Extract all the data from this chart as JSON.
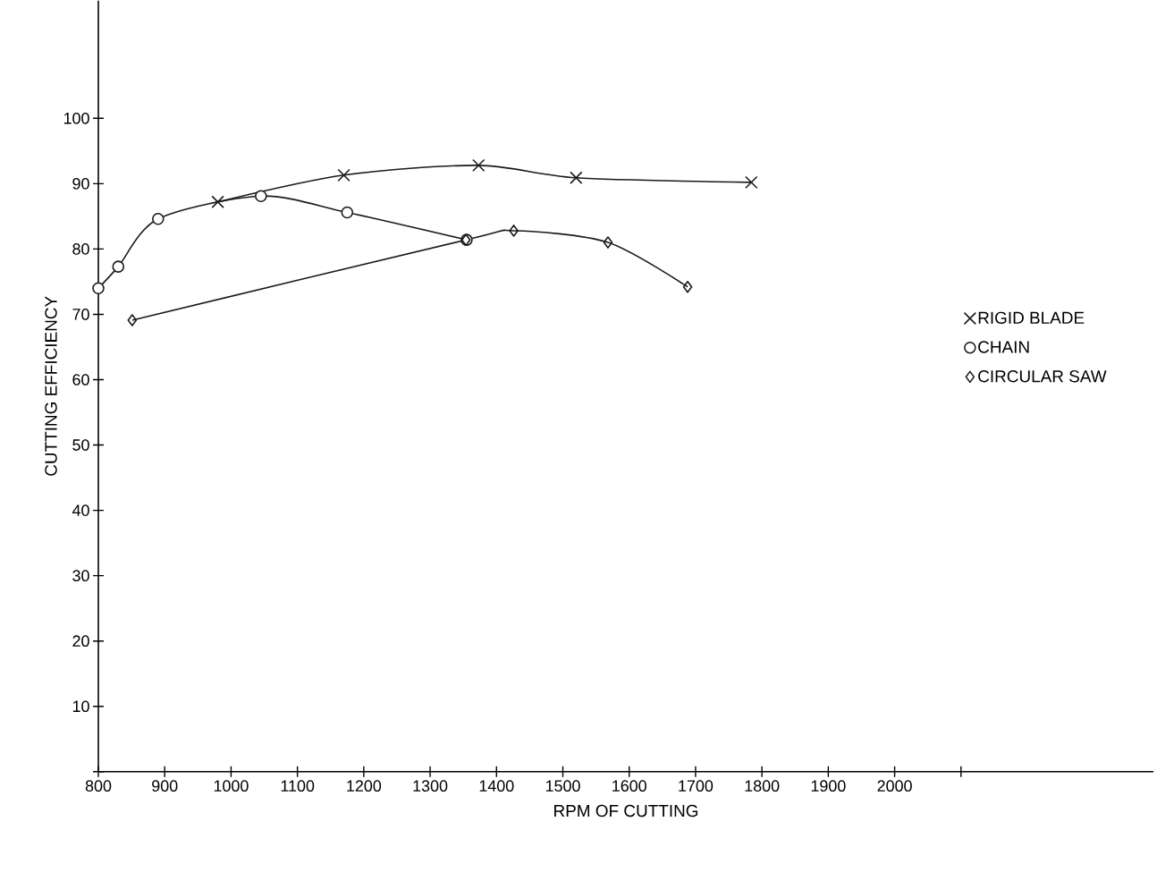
{
  "chart_data": {
    "type": "line",
    "xlabel": "RPM OF CUTTING",
    "ylabel": "CUTTING EFFICIENCY",
    "xlim": [
      800,
      2390
    ],
    "ylim": [
      0,
      118
    ],
    "xticks": [
      800,
      900,
      1000,
      1100,
      1200,
      1300,
      1400,
      1500,
      1600,
      1700,
      1800,
      1900,
      2000,
      {
        "value": 2100,
        "label": null
      }
    ],
    "yticks": [
      {
        "value": 0,
        "label": null
      },
      10,
      20,
      30,
      40,
      50,
      60,
      70,
      80,
      90,
      100
    ],
    "grid": false,
    "legend": "right",
    "line_style": "solid",
    "series": [
      {
        "name": "RIGID BLADE",
        "color": "#1a1a1a",
        "marker": "cross",
        "x": [
          980,
          1170,
          1373,
          1520,
          1784
        ],
        "values": [
          87.2,
          91.3,
          92.8,
          90.9,
          90.2
        ]
      },
      {
        "name": "CHAIN",
        "color": "#1a1a1a",
        "marker": "circle",
        "x": [
          800,
          830,
          890,
          1045,
          1175,
          1355
        ],
        "values": [
          74,
          77.3,
          84.6,
          88.1,
          85.6,
          81.4
        ]
      },
      {
        "name": "CIRCULAR SAW",
        "color": "#1a1a1a",
        "marker": "diamond",
        "x": [
          851,
          1354,
          1426,
          1568,
          1688
        ],
        "values": [
          69.1,
          81.4,
          82.8,
          81.0,
          74.2
        ]
      }
    ]
  }
}
